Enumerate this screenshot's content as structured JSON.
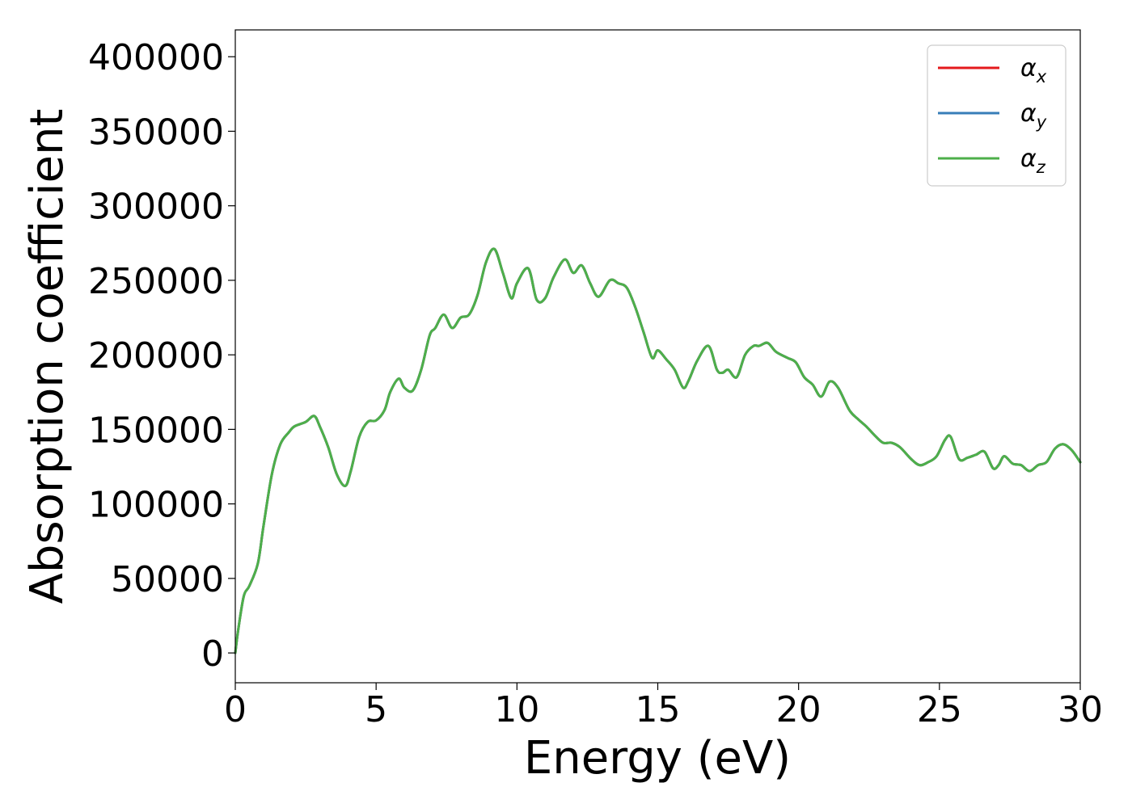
{
  "chart_data": {
    "type": "line",
    "xlabel": "Energy (eV)",
    "ylabel": "Absorption coefficient",
    "xlim": [
      0,
      30
    ],
    "ylim": [
      -20000,
      418000
    ],
    "xticks": [
      0,
      5,
      10,
      15,
      20,
      25,
      30
    ],
    "xtick_labels": [
      "0",
      "5",
      "10",
      "15",
      "20",
      "25",
      "30"
    ],
    "yticks": [
      0,
      50000,
      100000,
      150000,
      200000,
      250000,
      300000,
      350000,
      400000
    ],
    "ytick_labels": [
      "0",
      "50000",
      "100000",
      "150000",
      "200000",
      "250000",
      "300000",
      "350000",
      "400000"
    ],
    "grid": false,
    "legend_position": "top-right",
    "x": [
      0,
      0.1,
      0.3,
      0.5,
      0.8,
      1.0,
      1.3,
      1.6,
      1.9,
      2.1,
      2.5,
      2.8,
      3.0,
      3.3,
      3.6,
      3.9,
      4.1,
      4.4,
      4.7,
      5.0,
      5.3,
      5.5,
      5.8,
      6.0,
      6.3,
      6.6,
      6.9,
      7.1,
      7.4,
      7.7,
      8.0,
      8.3,
      8.6,
      8.9,
      9.2,
      9.5,
      9.8,
      10.0,
      10.4,
      10.7,
      11.0,
      11.3,
      11.7,
      12.0,
      12.3,
      12.6,
      12.9,
      13.3,
      13.6,
      13.9,
      14.2,
      14.5,
      14.8,
      15.0,
      15.3,
      15.6,
      15.9,
      16.1,
      16.4,
      16.8,
      17.1,
      17.3,
      17.5,
      17.8,
      18.1,
      18.4,
      18.6,
      18.9,
      19.2,
      19.6,
      19.9,
      20.2,
      20.5,
      20.8,
      21.1,
      21.4,
      21.8,
      22.1,
      22.4,
      22.7,
      23.0,
      23.3,
      23.6,
      24.0,
      24.3,
      24.6,
      24.9,
      25.2,
      25.4,
      25.7,
      26.0,
      26.3,
      26.6,
      26.9,
      27.1,
      27.3,
      27.6,
      27.9,
      28.2,
      28.5,
      28.8,
      29.1,
      29.4,
      29.7,
      30.0
    ],
    "series": [
      {
        "name": "α_x",
        "label_main": "α",
        "label_sub": "x",
        "color": "#e41a1c",
        "values": [
          0,
          15000,
          38000,
          45000,
          60000,
          85000,
          120000,
          140000,
          148000,
          152000,
          155000,
          159000,
          152000,
          138000,
          120000,
          112000,
          122000,
          145000,
          155000,
          156000,
          163000,
          175000,
          184000,
          178000,
          176000,
          190000,
          213000,
          218000,
          227000,
          218000,
          225000,
          227000,
          240000,
          262000,
          271000,
          255000,
          238000,
          248000,
          258000,
          237000,
          238000,
          252000,
          264000,
          255000,
          260000,
          248000,
          239000,
          250000,
          248000,
          245000,
          232000,
          215000,
          198000,
          203000,
          197000,
          190000,
          178000,
          183000,
          196000,
          206000,
          190000,
          188000,
          190000,
          185000,
          200000,
          206000,
          206000,
          208000,
          202000,
          198000,
          195000,
          185000,
          180000,
          172000,
          182000,
          178000,
          163000,
          157000,
          152000,
          146000,
          141000,
          141000,
          138000,
          130000,
          126000,
          128000,
          132000,
          143000,
          145000,
          130000,
          131000,
          133000,
          135000,
          124000,
          126000,
          132000,
          127000,
          126000,
          122000,
          126000,
          128000,
          137000,
          140000,
          136000,
          128000
        ]
      },
      {
        "name": "α_y",
        "label_main": "α",
        "label_sub": "y",
        "color": "#377eb8",
        "values": [
          0,
          15000,
          38000,
          45000,
          60000,
          85000,
          120000,
          140000,
          148000,
          152000,
          155000,
          159000,
          152000,
          138000,
          120000,
          112000,
          122000,
          145000,
          155000,
          156000,
          163000,
          175000,
          184000,
          178000,
          176000,
          190000,
          213000,
          218000,
          227000,
          218000,
          225000,
          227000,
          240000,
          262000,
          271000,
          255000,
          238000,
          248000,
          258000,
          237000,
          238000,
          252000,
          264000,
          255000,
          260000,
          248000,
          239000,
          250000,
          248000,
          245000,
          232000,
          215000,
          198000,
          203000,
          197000,
          190000,
          178000,
          183000,
          196000,
          206000,
          190000,
          188000,
          190000,
          185000,
          200000,
          206000,
          206000,
          208000,
          202000,
          198000,
          195000,
          185000,
          180000,
          172000,
          182000,
          178000,
          163000,
          157000,
          152000,
          146000,
          141000,
          141000,
          138000,
          130000,
          126000,
          128000,
          132000,
          143000,
          145000,
          130000,
          131000,
          133000,
          135000,
          124000,
          126000,
          132000,
          127000,
          126000,
          122000,
          126000,
          128000,
          137000,
          140000,
          136000,
          128000
        ]
      },
      {
        "name": "α_z",
        "label_main": "α",
        "label_sub": "z",
        "color": "#4daf4a",
        "values": [
          0,
          15000,
          38000,
          45000,
          60000,
          85000,
          120000,
          140000,
          148000,
          152000,
          155000,
          159000,
          152000,
          138000,
          120000,
          112000,
          122000,
          145000,
          155000,
          156000,
          163000,
          175000,
          184000,
          178000,
          176000,
          190000,
          213000,
          218000,
          227000,
          218000,
          225000,
          227000,
          240000,
          262000,
          271000,
          255000,
          238000,
          248000,
          258000,
          237000,
          238000,
          252000,
          264000,
          255000,
          260000,
          248000,
          239000,
          250000,
          248000,
          245000,
          232000,
          215000,
          198000,
          203000,
          197000,
          190000,
          178000,
          183000,
          196000,
          206000,
          190000,
          188000,
          190000,
          185000,
          200000,
          206000,
          206000,
          208000,
          202000,
          198000,
          195000,
          185000,
          180000,
          172000,
          182000,
          178000,
          163000,
          157000,
          152000,
          146000,
          141000,
          141000,
          138000,
          130000,
          126000,
          128000,
          132000,
          143000,
          145000,
          130000,
          131000,
          133000,
          135000,
          124000,
          126000,
          132000,
          127000,
          126000,
          122000,
          126000,
          128000,
          137000,
          140000,
          136000,
          128000
        ]
      }
    ]
  }
}
